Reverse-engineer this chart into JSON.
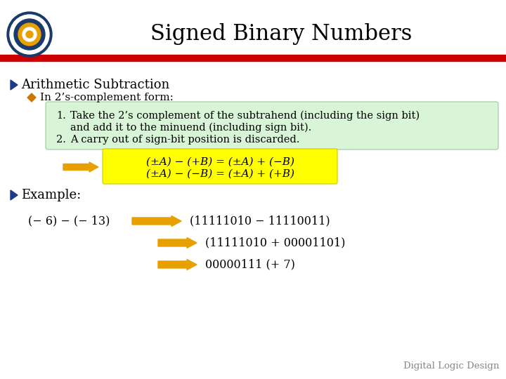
{
  "title": "Signed Binary Numbers",
  "title_fontsize": 22,
  "bg_color": "#ffffff",
  "header_bar_color": "#cc0000",
  "bullet1_text": "Arithmetic Subtraction",
  "bullet1_color": "#1a3a8b",
  "bullet2_text": "In 2’s-complement form:",
  "bullet2_color": "#cc7700",
  "green_box_color": "#d8f5d8",
  "green_box_border": "#a0c8a0",
  "item1_line1": "Take the 2’s complement of the subtrahend (including the sign bit)",
  "item1_line2": "and add it to the minuend (including sign bit).",
  "item2": "A carry out of sign-bit position is discarded.",
  "yellow_box_color": "#ffff00",
  "yellow_box_border": "#cccc00",
  "formula1": "(±A) − (+B) = (±A) + (−B)",
  "formula2": "(±A) − (−B) = (±A) + (+B)",
  "arrow_color": "#e8a000",
  "bullet3_text": "Example:",
  "example_lhs": "(− 6) − (− 13)",
  "example_r1": "(11111010 − 11110011)",
  "example_r2": "(11111010 + 00001101)",
  "example_r3": "00000111 (+ 7)",
  "footer_text": "Digital Logic Design",
  "footer_color": "#888888",
  "text_color": "#000000"
}
